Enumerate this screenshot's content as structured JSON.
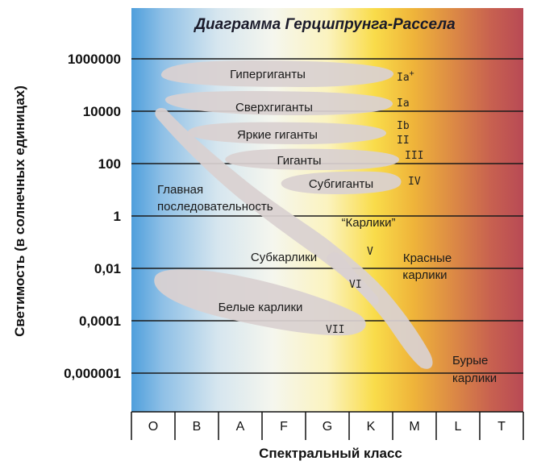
{
  "title": "Диаграмма Герцшпрунга-Рассела",
  "x_axis_title": "Спектральный класс",
  "y_axis_title": "Светимость (в солнечных единицах)",
  "luminosity_ticks": [
    "1000000",
    "10000",
    "100",
    "1",
    "0,01",
    "0,0001",
    "0,000001"
  ],
  "spectral_classes": [
    "O",
    "B",
    "A",
    "F",
    "G",
    "K",
    "M",
    "L",
    "T"
  ],
  "regions": {
    "hypergiants": "Гипергиганты",
    "supergiants": "Сверхгиганты",
    "bright_giants": "Яркие гиганты",
    "giants": "Гиганты",
    "subgiants": "Субгиганты",
    "main_sequence_1": "Главная",
    "main_sequence_2": "последовательность",
    "dwarfs": "“Карлики”",
    "subdwarfs": "Субкарлики",
    "red_dwarfs_1": "Красные",
    "red_dwarfs_2": "карлики",
    "white_dwarfs": "Белые карлики",
    "brown_dwarfs_1": "Бурые",
    "brown_dwarfs_2": "карлики"
  },
  "luminosity_classes": {
    "ia_plus": "Ia",
    "ia_plus_sup": "+",
    "ia": "Ia",
    "ib": "Ib",
    "ii": "II",
    "iii": "III",
    "iv": "IV",
    "v": "V",
    "vi": "VI",
    "vii": "VII"
  },
  "colors": {
    "hot_blue": "#4f9fdc",
    "white": "#f4f7f2",
    "yellow": "#f7d21a",
    "orange": "#e59a32",
    "red": "#b84a55",
    "region_fill": "#d9d1d1"
  }
}
